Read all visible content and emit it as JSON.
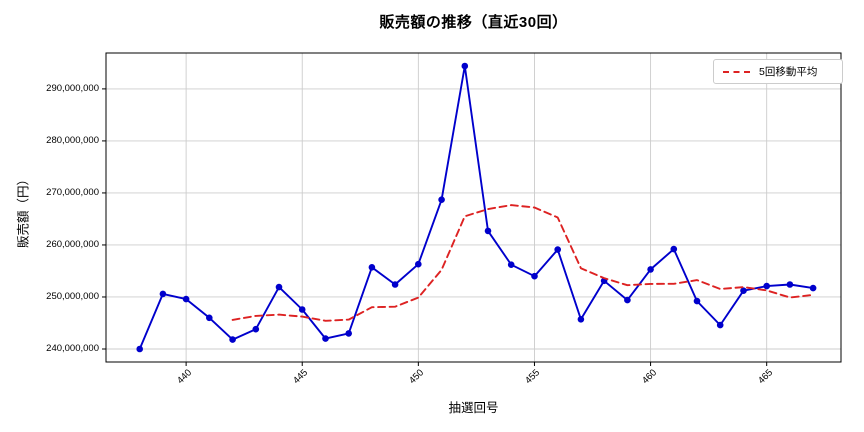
{
  "title": "販売額の推移（直近30回）",
  "axes": {
    "xlabel": "抽選回号",
    "ylabel": "販売額（円）"
  },
  "legend": {
    "label": "5回移動平均",
    "position": "upper right"
  },
  "colors": {
    "sales_line": "#0000cc",
    "moving_average_line": "#dd2222",
    "grid": "#cccccc",
    "frame": "#000000",
    "background": "#ffffff"
  },
  "chart_data": {
    "type": "line",
    "title": "販売額の推移（直近30回）",
    "xlabel": "抽選回号",
    "ylabel": "販売額（円）",
    "grid": true,
    "legend_position": "upper right",
    "x": [
      438,
      439,
      440,
      441,
      442,
      443,
      444,
      445,
      446,
      447,
      448,
      449,
      450,
      451,
      452,
      453,
      454,
      455,
      456,
      457,
      458,
      459,
      460,
      461,
      462,
      463,
      464,
      465,
      466,
      467
    ],
    "series": [
      {
        "name": "販売額",
        "color": "#0000cc",
        "line_style": "solid",
        "markers": true,
        "values": [
          240000000,
          250600000,
          249600000,
          246000000,
          241800000,
          243800000,
          251900000,
          247600000,
          242000000,
          243000000,
          255700000,
          252400000,
          256300000,
          268700000,
          294400000,
          262700000,
          256200000,
          254000000,
          259100000,
          245700000,
          253100000,
          249400000,
          255300000,
          259200000,
          249200000,
          244600000,
          251200000,
          252100000,
          252400000,
          251700000
        ]
      },
      {
        "name": "5回移動平均",
        "color": "#dd2222",
        "line_style": "dashed",
        "markers": false,
        "values": [
          null,
          null,
          null,
          null,
          245600000,
          246360000,
          246620000,
          246220000,
          245420000,
          245660000,
          248040000,
          248140000,
          249880000,
          255220000,
          265500000,
          266900000,
          267660000,
          267200000,
          265280000,
          255540000,
          253620000,
          252260000,
          252520000,
          252540000,
          253240000,
          251540000,
          251900000,
          251260000,
          249900000,
          250400000
        ]
      }
    ],
    "xticks": {
      "values": [
        440,
        445,
        450,
        455,
        460,
        465
      ],
      "labels": [
        "440",
        "445",
        "450",
        "455",
        "460",
        "465"
      ]
    },
    "yticks": {
      "values": [
        240000000,
        250000000,
        260000000,
        270000000,
        280000000,
        290000000
      ],
      "labels": [
        "240,000,000",
        "250,000,000",
        "260,000,000",
        "270,000,000",
        "280,000,000",
        "290,000,000"
      ]
    },
    "xlim": [
      436.55,
      468.2
    ],
    "ylim": [
      237500000,
      296900000
    ]
  }
}
